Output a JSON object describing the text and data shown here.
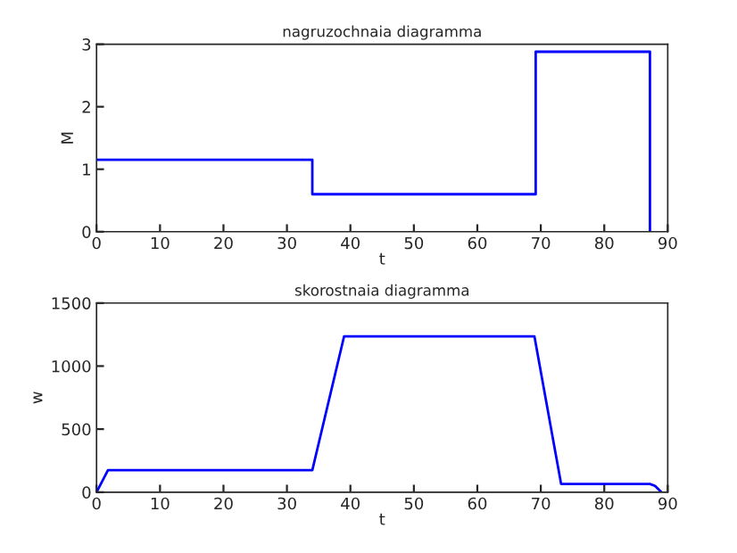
{
  "chart_data": [
    {
      "type": "line",
      "title": "nagruzochnaia diagramma",
      "xlabel": "t",
      "ylabel": "M",
      "xlim": [
        0,
        90
      ],
      "ylim": [
        0,
        3
      ],
      "xticks": [
        0,
        10,
        20,
        30,
        40,
        50,
        60,
        70,
        80,
        90
      ],
      "yticks": [
        0,
        1,
        2,
        3
      ],
      "grid": false,
      "legend": false,
      "series": [
        {
          "color": "#0000ff",
          "x": [
            0,
            34,
            34,
            69.2,
            69.2,
            87.2,
            87.2
          ],
          "values": [
            1.15,
            1.15,
            0.6,
            0.6,
            2.88,
            2.88,
            0
          ]
        }
      ]
    },
    {
      "type": "line",
      "title": "skorostnaia diagramma",
      "xlabel": "t",
      "ylabel": "w",
      "xlim": [
        0,
        90
      ],
      "ylim": [
        0,
        1500
      ],
      "xticks": [
        0,
        10,
        20,
        30,
        40,
        50,
        60,
        70,
        80,
        90
      ],
      "yticks": [
        0,
        500,
        1000,
        1500
      ],
      "grid": false,
      "legend": false,
      "series": [
        {
          "color": "#0000ff",
          "x": [
            0,
            1.8,
            34,
            39,
            69,
            73.2,
            87.2,
            88,
            89
          ],
          "values": [
            0,
            175,
            175,
            1235,
            1235,
            65,
            65,
            50,
            0
          ]
        }
      ]
    }
  ]
}
